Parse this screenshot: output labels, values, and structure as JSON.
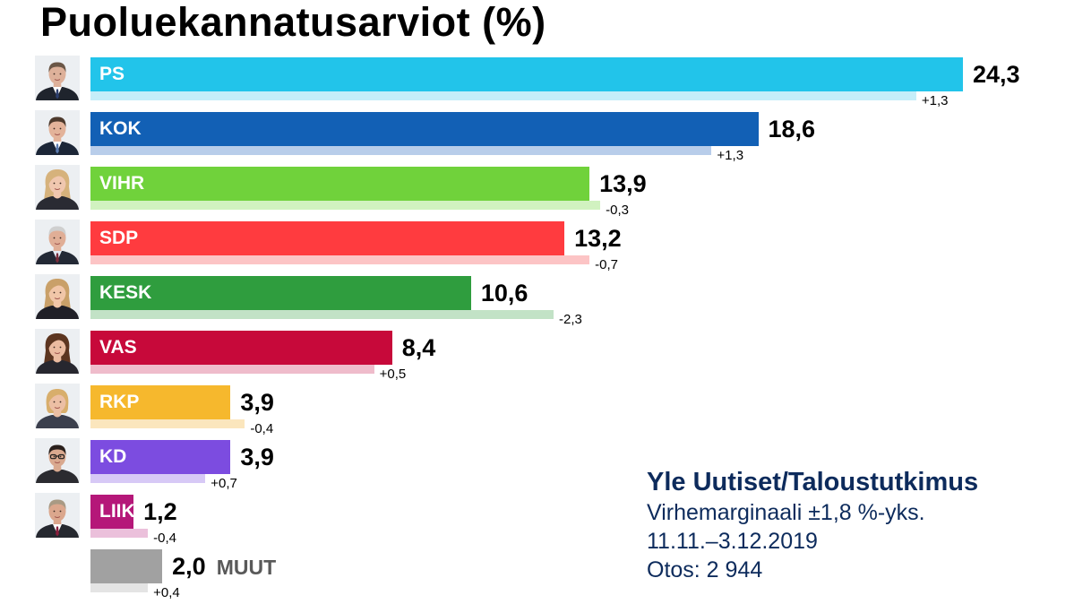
{
  "chart_data": {
    "type": "bar",
    "orientation": "horizontal",
    "title": "Puoluekannatusarviot (%)",
    "categories": [
      "PS",
      "KOK",
      "VIHR",
      "SDP",
      "KESK",
      "VAS",
      "RKP",
      "KD",
      "LIIK",
      "MUUT"
    ],
    "series": [
      {
        "values": [
          24.3,
          18.6,
          13.9,
          13.2,
          10.6,
          8.4,
          3.9,
          3.9,
          1.2,
          2.0
        ],
        "labels": [
          "24,3",
          "18,6",
          "13,9",
          "13,2",
          "10,6",
          "8,4",
          "3,9",
          "3,9",
          "1,2",
          "2,0"
        ]
      },
      {
        "values": [
          23.0,
          17.3,
          14.2,
          13.9,
          12.9,
          7.9,
          4.3,
          3.2,
          1.6,
          1.6
        ]
      }
    ],
    "change_labels": [
      "+1,3",
      "+1,3",
      "-0,3",
      "-0,7",
      "-2,3",
      "+0,5",
      "-0,4",
      "+0,7",
      "-0,4",
      "+0,4"
    ],
    "colors": [
      "#22c4ea",
      "#1260b5",
      "#70d23b",
      "#ff3b3f",
      "#2f9d3e",
      "#c7093a",
      "#f6b82d",
      "#7c4ce0",
      "#b51779",
      "#a1a1a1"
    ],
    "previous_colors": [
      "#c5eef9",
      "#b8cdea",
      "#d1f2c0",
      "#fcc4c5",
      "#c2e2c6",
      "#efbccb",
      "#fbe6bd",
      "#d7c9f6",
      "#ebc0db",
      "#e4e4e4"
    ],
    "grid": false
  },
  "source": {
    "publisher": "Yle Uutiset/Taloustutkimus",
    "margin_of_error": "Virhemarginaali ±1,8 %-yks.",
    "period": "11.11.–3.12.2019",
    "sample": "Otos: 2 944"
  }
}
